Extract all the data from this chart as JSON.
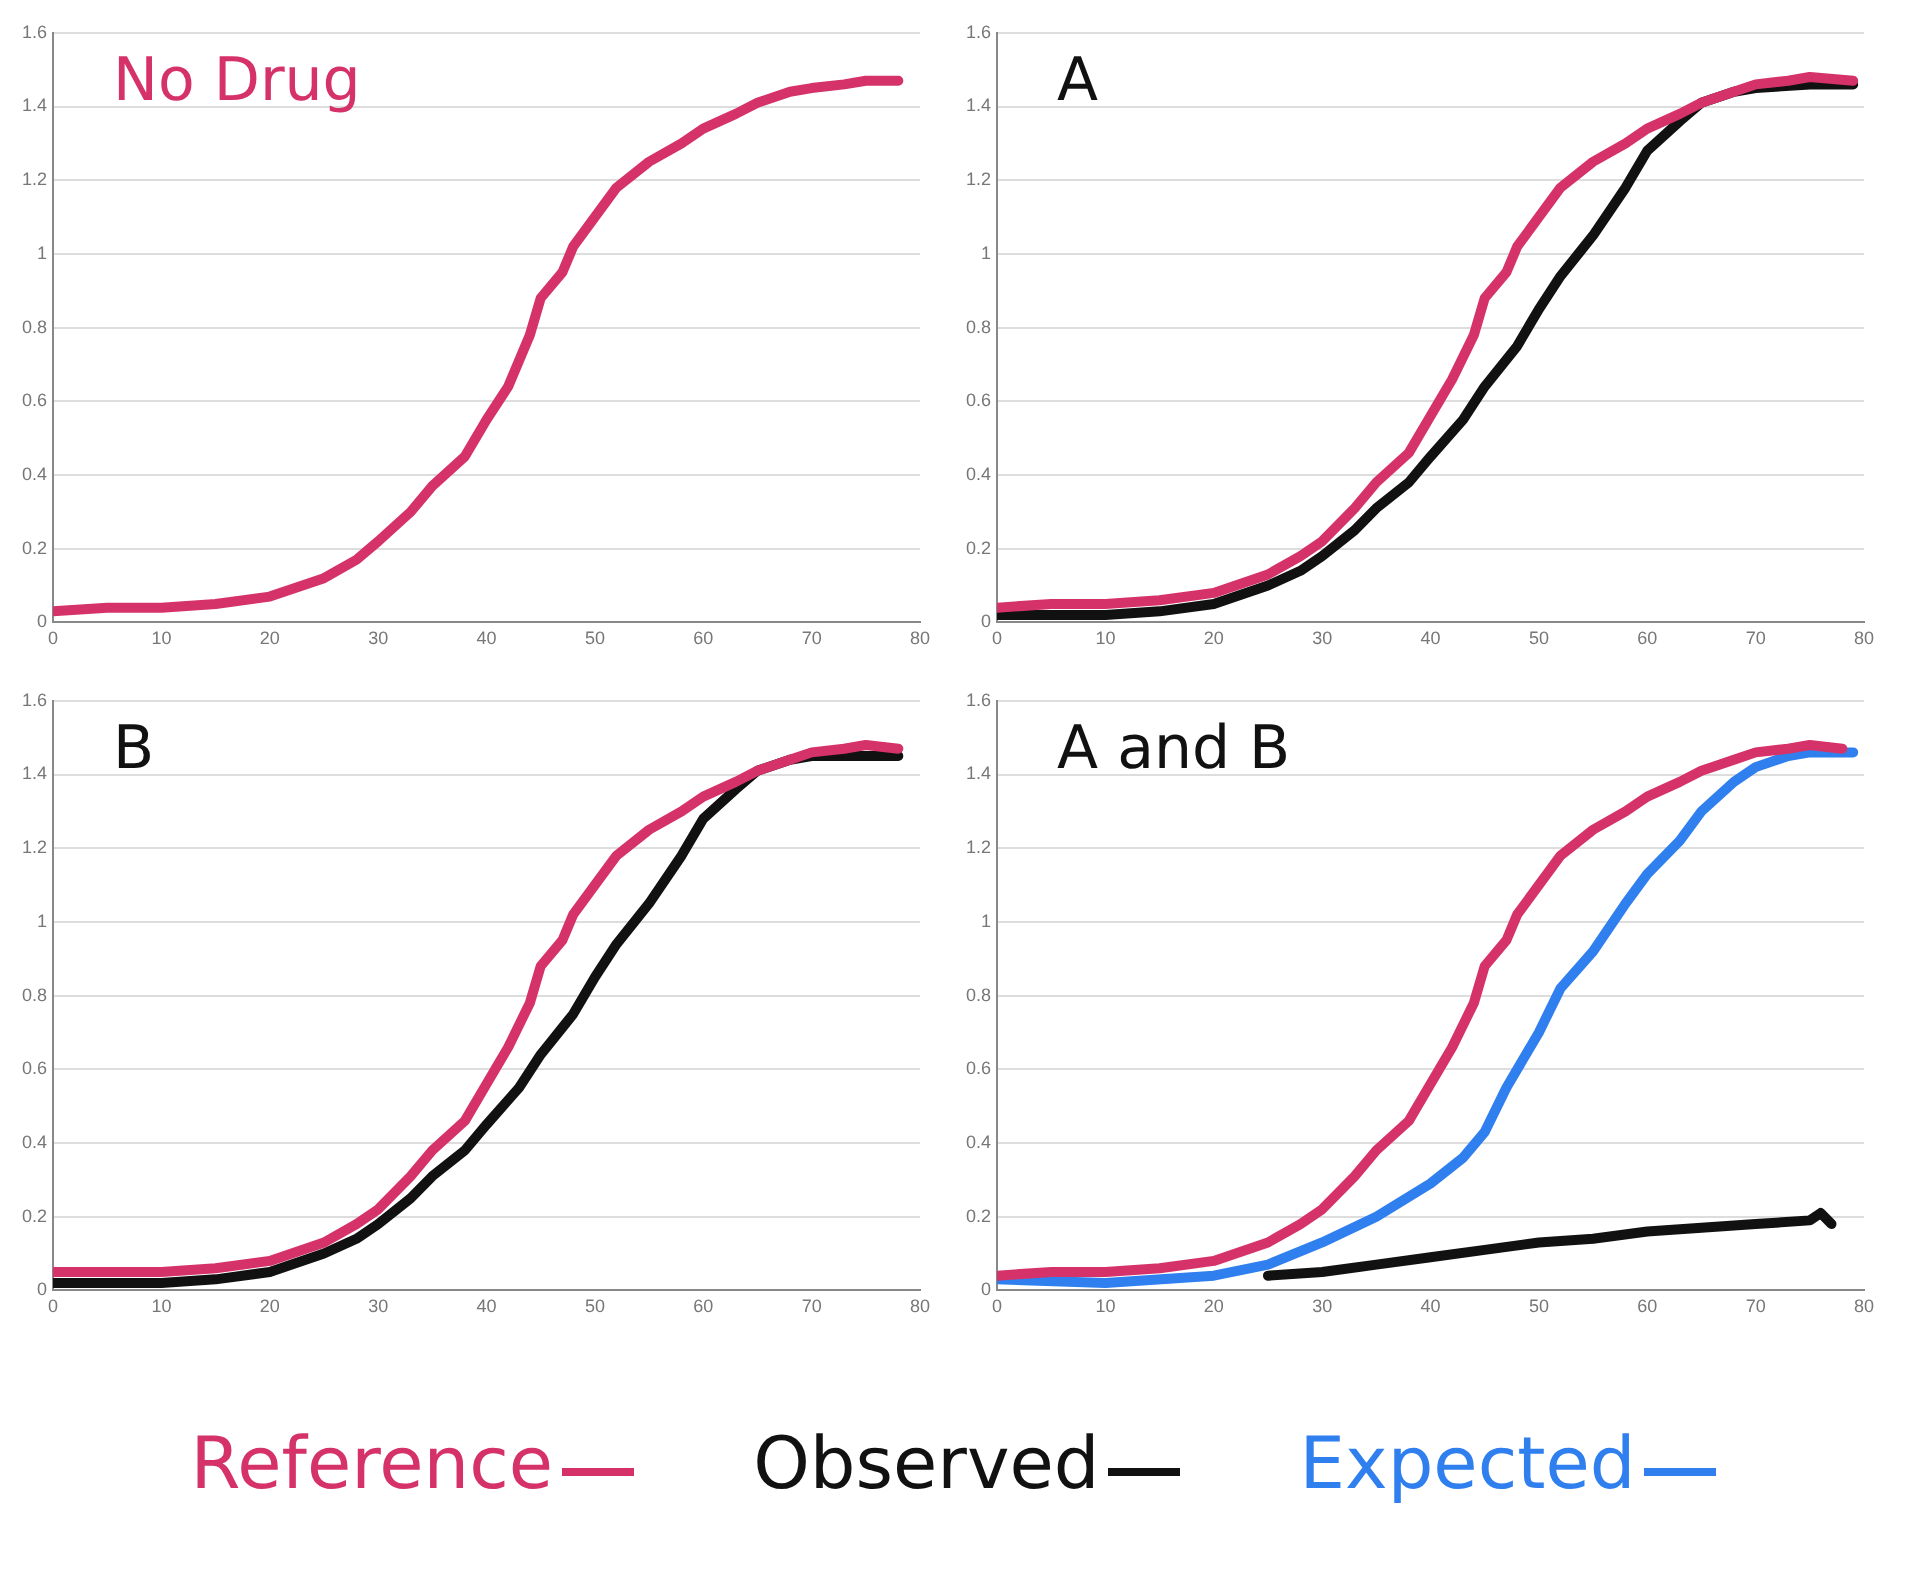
{
  "chart_data": [
    {
      "type": "line",
      "title": "No Drug",
      "xlim": [
        0,
        80
      ],
      "xticks": [
        0,
        10,
        20,
        30,
        40,
        50,
        60,
        70,
        80
      ],
      "ylim": [
        0,
        1.6
      ],
      "yticks": [
        0,
        0.2,
        0.4,
        0.6,
        0.8,
        1,
        1.2,
        1.4,
        1.6
      ],
      "grid": "y",
      "series": [
        {
          "color": "#d6326a",
          "x": [
            0,
            5,
            10,
            15,
            20,
            25,
            28,
            30,
            33,
            35,
            38,
            40,
            42,
            44,
            45,
            47,
            48,
            50,
            52,
            55,
            58,
            60,
            63,
            65,
            68,
            70,
            73,
            75,
            78
          ],
          "values": [
            0.03,
            0.04,
            0.04,
            0.05,
            0.07,
            0.12,
            0.17,
            0.22,
            0.3,
            0.37,
            0.45,
            0.55,
            0.64,
            0.78,
            0.88,
            0.95,
            1.02,
            1.1,
            1.18,
            1.25,
            1.3,
            1.34,
            1.38,
            1.41,
            1.44,
            1.45,
            1.46,
            1.47,
            1.47
          ]
        }
      ]
    },
    {
      "type": "line",
      "title": "A",
      "xlim": [
        0,
        80
      ],
      "xticks": [
        0,
        10,
        20,
        30,
        40,
        50,
        60,
        70,
        80
      ],
      "ylim": [
        0,
        1.6
      ],
      "yticks": [
        0,
        0.2,
        0.4,
        0.6,
        0.8,
        1,
        1.2,
        1.4,
        1.6
      ],
      "grid": "y",
      "series": [
        {
          "color": "#d6326a",
          "x": [
            0,
            5,
            10,
            15,
            20,
            25,
            28,
            30,
            33,
            35,
            38,
            40,
            42,
            44,
            45,
            47,
            48,
            50,
            52,
            55,
            58,
            60,
            63,
            65,
            68,
            70,
            73,
            75,
            79
          ],
          "values": [
            0.04,
            0.05,
            0.05,
            0.06,
            0.08,
            0.13,
            0.18,
            0.22,
            0.31,
            0.38,
            0.46,
            0.56,
            0.66,
            0.78,
            0.88,
            0.95,
            1.02,
            1.1,
            1.18,
            1.25,
            1.3,
            1.34,
            1.38,
            1.41,
            1.44,
            1.46,
            1.47,
            1.48,
            1.47
          ]
        },
        {
          "color": "#111111",
          "x": [
            0,
            10,
            15,
            20,
            25,
            28,
            30,
            33,
            35,
            38,
            40,
            43,
            45,
            48,
            50,
            52,
            55,
            58,
            60,
            63,
            65,
            68,
            70,
            75,
            79
          ],
          "values": [
            0.02,
            0.02,
            0.03,
            0.05,
            0.1,
            0.14,
            0.18,
            0.25,
            0.31,
            0.38,
            0.45,
            0.55,
            0.64,
            0.75,
            0.85,
            0.94,
            1.05,
            1.18,
            1.28,
            1.36,
            1.41,
            1.44,
            1.45,
            1.46,
            1.46
          ]
        }
      ]
    },
    {
      "type": "line",
      "title": "B",
      "xlim": [
        0,
        80
      ],
      "xticks": [
        0,
        10,
        20,
        30,
        40,
        50,
        60,
        70,
        80
      ],
      "ylim": [
        0,
        1.6
      ],
      "yticks": [
        0,
        0.2,
        0.4,
        0.6,
        0.8,
        1,
        1.2,
        1.4,
        1.6
      ],
      "grid": "y",
      "series": [
        {
          "color": "#d6326a",
          "x": [
            0,
            5,
            10,
            15,
            20,
            25,
            28,
            30,
            33,
            35,
            38,
            40,
            42,
            44,
            45,
            47,
            48,
            50,
            52,
            55,
            58,
            60,
            63,
            65,
            68,
            70,
            73,
            75,
            78
          ],
          "values": [
            0.05,
            0.05,
            0.05,
            0.06,
            0.08,
            0.13,
            0.18,
            0.22,
            0.31,
            0.38,
            0.46,
            0.56,
            0.66,
            0.78,
            0.88,
            0.95,
            1.02,
            1.1,
            1.18,
            1.25,
            1.3,
            1.34,
            1.38,
            1.41,
            1.44,
            1.46,
            1.47,
            1.48,
            1.47
          ]
        },
        {
          "color": "#111111",
          "x": [
            0,
            10,
            15,
            20,
            25,
            28,
            30,
            33,
            35,
            38,
            40,
            43,
            45,
            48,
            50,
            52,
            55,
            58,
            60,
            63,
            65,
            68,
            70,
            75,
            78
          ],
          "values": [
            0.02,
            0.02,
            0.03,
            0.05,
            0.1,
            0.14,
            0.18,
            0.25,
            0.31,
            0.38,
            0.45,
            0.55,
            0.64,
            0.75,
            0.85,
            0.94,
            1.05,
            1.18,
            1.28,
            1.36,
            1.41,
            1.44,
            1.45,
            1.45,
            1.45
          ]
        }
      ]
    },
    {
      "type": "line",
      "title": "A and B",
      "xlim": [
        0,
        80
      ],
      "xticks": [
        0,
        10,
        20,
        30,
        40,
        50,
        60,
        70,
        80
      ],
      "ylim": [
        0,
        1.6
      ],
      "yticks": [
        0,
        0.2,
        0.4,
        0.6,
        0.8,
        1,
        1.2,
        1.4,
        1.6
      ],
      "grid": "y",
      "legend": "bottom",
      "series": [
        {
          "name": "Reference",
          "color": "#d6326a",
          "x": [
            0,
            5,
            10,
            15,
            20,
            25,
            28,
            30,
            33,
            35,
            38,
            40,
            42,
            44,
            45,
            47,
            48,
            50,
            52,
            55,
            58,
            60,
            63,
            65,
            68,
            70,
            73,
            75,
            78
          ],
          "values": [
            0.04,
            0.05,
            0.05,
            0.06,
            0.08,
            0.13,
            0.18,
            0.22,
            0.31,
            0.38,
            0.46,
            0.56,
            0.66,
            0.78,
            0.88,
            0.95,
            1.02,
            1.1,
            1.18,
            1.25,
            1.3,
            1.34,
            1.38,
            1.41,
            1.44,
            1.46,
            1.47,
            1.48,
            1.47
          ]
        },
        {
          "name": "Observed",
          "color": "#111111",
          "x": [
            25,
            30,
            35,
            40,
            45,
            50,
            55,
            60,
            65,
            70,
            75,
            76,
            77
          ],
          "values": [
            0.04,
            0.05,
            0.07,
            0.09,
            0.11,
            0.13,
            0.14,
            0.16,
            0.17,
            0.18,
            0.19,
            0.21,
            0.18
          ]
        },
        {
          "name": "Expected",
          "color": "#2f7fef",
          "x": [
            0,
            10,
            20,
            25,
            30,
            35,
            40,
            43,
            45,
            47,
            50,
            52,
            55,
            58,
            60,
            63,
            65,
            68,
            70,
            73,
            75,
            79
          ],
          "values": [
            0.03,
            0.02,
            0.04,
            0.07,
            0.13,
            0.2,
            0.29,
            0.36,
            0.43,
            0.55,
            0.7,
            0.82,
            0.92,
            1.05,
            1.13,
            1.22,
            1.3,
            1.38,
            1.42,
            1.45,
            1.46,
            1.46
          ]
        }
      ]
    }
  ]
}
